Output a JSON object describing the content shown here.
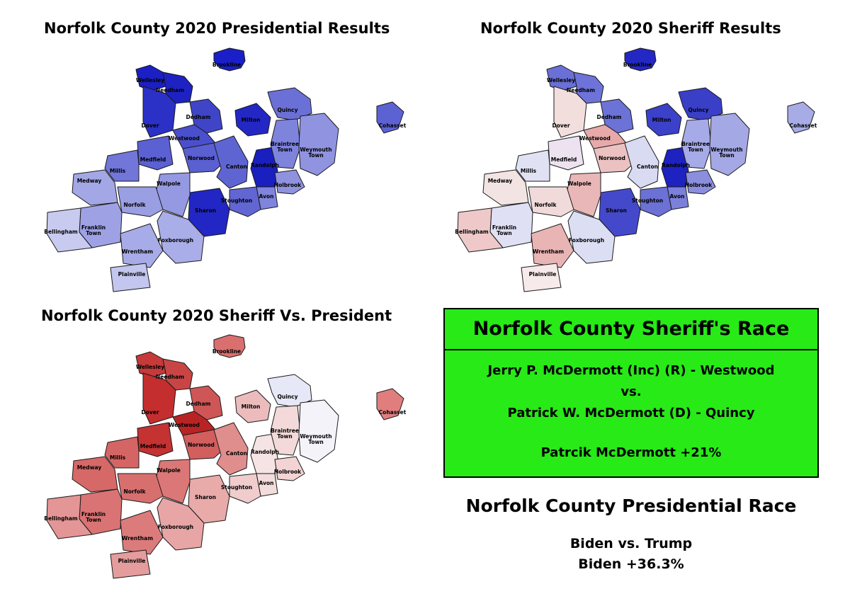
{
  "titles": {
    "presidential_map": "Norfolk County 2020 Presidential Results",
    "sheriff_map": "Norfolk County 2020 Sheriff Results",
    "diff_map": "Norfolk County 2020 Sheriff Vs. President"
  },
  "towns": [
    {
      "id": "brookline",
      "label": "Brookline",
      "pres": "#1a1fc9",
      "sheriff": "#2328c4",
      "diff": "#d96f6f"
    },
    {
      "id": "wellesley",
      "label": "Wellesley",
      "pres": "#1b1fc4",
      "sheriff": "#6a70d6",
      "diff": "#c63a3a"
    },
    {
      "id": "needham",
      "label": "Needham",
      "pres": "#1e22c2",
      "sheriff": "#6d73d8",
      "diff": "#c94545"
    },
    {
      "id": "dedham",
      "label": "Dedham",
      "pres": "#4045c8",
      "sheriff": "#6c72d6",
      "diff": "#cf5656"
    },
    {
      "id": "dover",
      "label": "Dover",
      "pres": "#2b30c6",
      "sheriff": "#f3dede",
      "diff": "#c42e2e"
    },
    {
      "id": "westwood",
      "label": "Westwood",
      "pres": "#4a4fcc",
      "sheriff": "#e7a9a9",
      "diff": "#b82424"
    },
    {
      "id": "medfield",
      "label": "Medfield",
      "pres": "#5b60d2",
      "sheriff": "#ede3f0",
      "diff": "#c43232"
    },
    {
      "id": "millis",
      "label": "Millis",
      "pres": "#7176d8",
      "sheriff": "#e0e2f4",
      "diff": "#d56565"
    },
    {
      "id": "norwood",
      "label": "Norwood",
      "pres": "#5a5fd1",
      "sheriff": "#ecc1c1",
      "diff": "#d35e5e"
    },
    {
      "id": "canton",
      "label": "Canton",
      "pres": "#5f64d3",
      "sheriff": "#d8dbf2",
      "diff": "#e08d8d"
    },
    {
      "id": "milton",
      "label": "Milton",
      "pres": "#2328c4",
      "sheriff": "#3c41c9",
      "diff": "#ecbcbc"
    },
    {
      "id": "quincy",
      "label": "Quincy",
      "pres": "#6b70d6",
      "sheriff": "#3a3fc8",
      "diff": "#e7e8f7"
    },
    {
      "id": "randolph",
      "label": "Randolph",
      "pres": "#1a1fbf",
      "sheriff": "#1d22c1",
      "diff": "#f6e3e3"
    },
    {
      "id": "braintree",
      "label": "Braintree Town",
      "pres": "#7e83dc",
      "sheriff": "#a6aae6",
      "diff": "#f3d9d9"
    },
    {
      "id": "weymouth",
      "label": "Weymouth Town",
      "pres": "#8f93e0",
      "sheriff": "#a4a8e5",
      "diff": "#f4f3fa"
    },
    {
      "id": "holbrook",
      "label": "Holbrook",
      "pres": "#8e92df",
      "sheriff": "#8a8edd",
      "diff": "#f3d3d3"
    },
    {
      "id": "avon",
      "label": "Avon",
      "pres": "#7f84dc",
      "sheriff": "#7b80da",
      "diff": "#f3dcdc"
    },
    {
      "id": "stoughton",
      "label": "Stoughton",
      "pres": "#6166d3",
      "sheriff": "#6c71d6",
      "diff": "#f0cccc"
    },
    {
      "id": "sharon",
      "label": "Sharon",
      "pres": "#2126c4",
      "sheriff": "#4449cb",
      "diff": "#e9aaaa"
    },
    {
      "id": "walpole",
      "label": "Walpole",
      "pres": "#9599e2",
      "sheriff": "#e9b7b7",
      "diff": "#dc7777"
    },
    {
      "id": "norfolk",
      "label": "Norfolk",
      "pres": "#9a9ee3",
      "sheriff": "#f1dada",
      "diff": "#d86f6f"
    },
    {
      "id": "medway",
      "label": "Medway",
      "pres": "#a3a7e6",
      "sheriff": "#f3e4e4",
      "diff": "#d66868"
    },
    {
      "id": "franklin",
      "label": "Franklin Town",
      "pres": "#9ea2e4",
      "sheriff": "#dfe0f4",
      "diff": "#da7373"
    },
    {
      "id": "bellingham",
      "label": "Bellingham",
      "pres": "#c8caef",
      "sheriff": "#efc9c9",
      "diff": "#e49595"
    },
    {
      "id": "wrentham",
      "label": "Wrentham",
      "pres": "#a7abe7",
      "sheriff": "#e9b4b4",
      "diff": "#dc7b7b"
    },
    {
      "id": "plainville",
      "label": "Plainville",
      "pres": "#c3c6ee",
      "sheriff": "#f7eaea",
      "diff": "#e59c9c"
    },
    {
      "id": "foxborough",
      "label": "Foxborough",
      "pres": "#a9ade8",
      "sheriff": "#dcdef3",
      "diff": "#e8a5a5"
    },
    {
      "id": "cohasset",
      "label": "Cohasset",
      "pres": "#5d62d2",
      "sheriff": "#a8ace6",
      "diff": "#e07e7e"
    }
  ],
  "sheriff_box": {
    "heading": "Norfolk County Sheriff's Race",
    "candidate_r": "Jerry P. McDermott (Inc) (R) - Westwood",
    "vs": "vs.",
    "candidate_d": "Patrick W. McDermott (D) - Quincy",
    "margin": "Patrcik McDermott +21%"
  },
  "presidential": {
    "heading": "Norfolk County Presidential Race",
    "matchup": "Biden vs. Trump",
    "margin": "Biden +36.3%"
  }
}
